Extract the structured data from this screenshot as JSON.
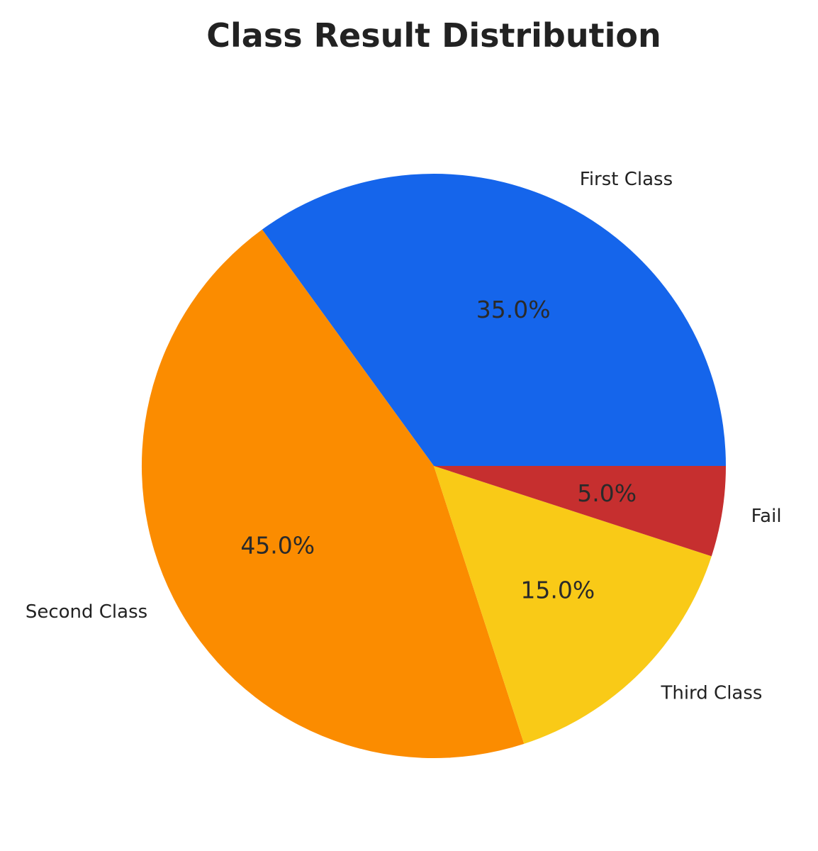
{
  "chart_data": {
    "type": "pie",
    "title": "Class Result Distribution",
    "categories": [
      "First Class",
      "Second Class",
      "Third Class",
      "Fail"
    ],
    "values": [
      35.0,
      45.0,
      15.0,
      5.0
    ],
    "value_labels": [
      "35.0%",
      "45.0%",
      "15.0%",
      "5.0%"
    ],
    "colors": [
      "#1565EB",
      "#FB8C00",
      "#F9CA17",
      "#C62F2F"
    ],
    "start_angle_deg": 0,
    "direction": "counterclockwise",
    "legend": "none"
  }
}
